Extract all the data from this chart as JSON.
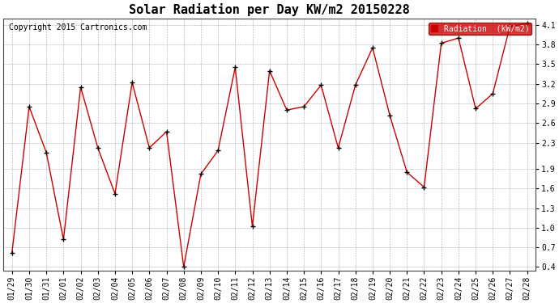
{
  "title": "Solar Radiation per Day KW/m2 20150228",
  "copyright": "Copyright 2015 Cartronics.com",
  "legend_label": "Radiation  (kW/m2)",
  "dates": [
    "01/29",
    "01/30",
    "01/31",
    "02/01",
    "02/02",
    "02/03",
    "02/04",
    "02/05",
    "02/06",
    "02/07",
    "02/08",
    "02/09",
    "02/10",
    "02/11",
    "02/12",
    "02/13",
    "02/14",
    "02/15",
    "02/16",
    "02/17",
    "02/18",
    "02/19",
    "02/20",
    "02/21",
    "02/22",
    "02/23",
    "02/24",
    "02/25",
    "02/26",
    "02/27",
    "02/28"
  ],
  "values": [
    0.62,
    2.85,
    2.15,
    0.82,
    3.15,
    2.22,
    1.52,
    3.22,
    2.22,
    2.47,
    0.4,
    1.82,
    2.18,
    3.45,
    1.02,
    3.4,
    2.8,
    2.85,
    3.18,
    2.22,
    3.18,
    3.75,
    2.72,
    1.85,
    1.62,
    3.82,
    3.9,
    2.82,
    3.05,
    4.08,
    4.12
  ],
  "line_color": "#cc0000",
  "marker_color": "#000000",
  "bg_color": "#ffffff",
  "grid_color": "#aaaaaa",
  "ylim_min": 0.35,
  "ylim_max": 4.2,
  "yticks": [
    0.4,
    0.7,
    1.0,
    1.3,
    1.6,
    1.9,
    2.3,
    2.6,
    2.9,
    3.2,
    3.5,
    3.8,
    4.1
  ],
  "ytick_labels": [
    "0.4",
    "0.7",
    "1.0",
    "1.3",
    "1.6",
    "1.9",
    "2.3",
    "2.6",
    "2.9",
    "3.2",
    "3.5",
    "3.8",
    "4.1"
  ],
  "legend_bg": "#cc0000",
  "legend_text_color": "#ffffff",
  "title_fontsize": 11,
  "tick_fontsize": 7,
  "copyright_fontsize": 7
}
